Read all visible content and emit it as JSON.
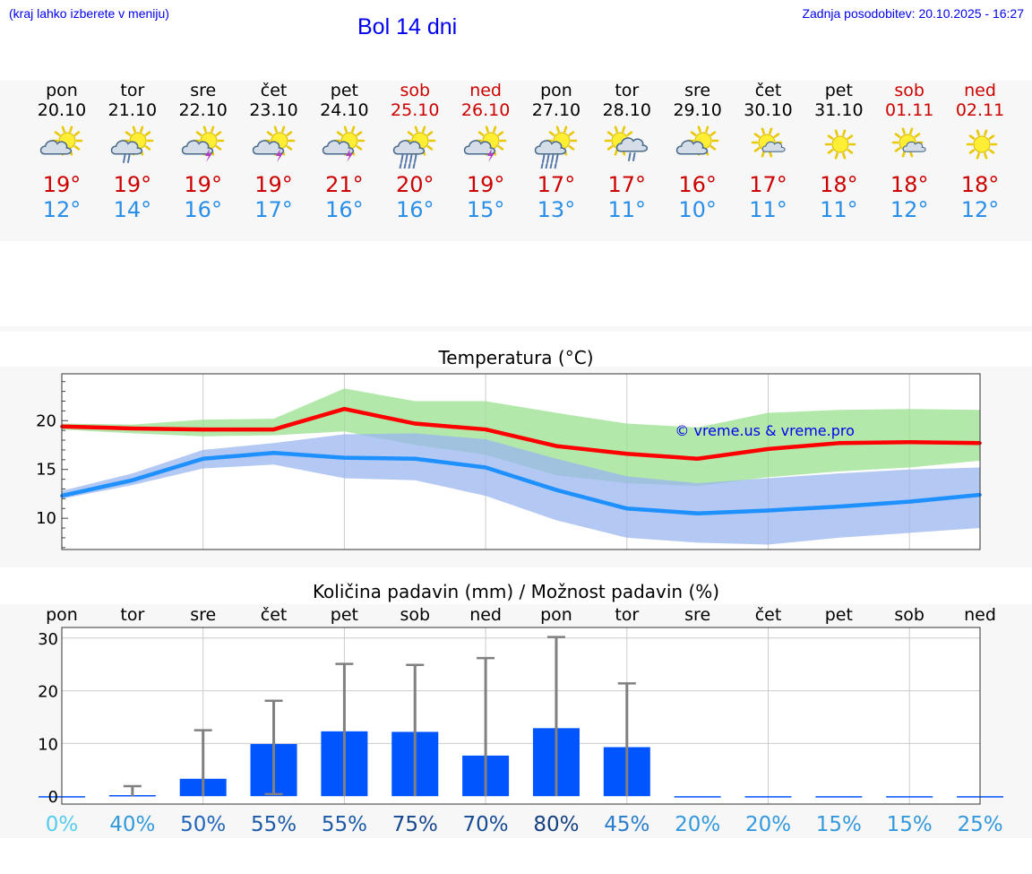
{
  "header": {
    "hint": "(kraj lahko izberete v meniju)",
    "title": "Bol 14 dni",
    "updated": "Zadnja posodobitev: 20.10.2025 - 16:27"
  },
  "colors": {
    "weekday": "#000000",
    "weekend": "#cc0000",
    "tmax": "#cc0000",
    "tmin": "#2a8fe8",
    "link": "#0000ee",
    "bar": "#0055ff"
  },
  "days": [
    {
      "name": "pon",
      "date": "20.10",
      "weekend": false,
      "icon": "sun-cloud-icon",
      "max": "19°",
      "min": "12°"
    },
    {
      "name": "tor",
      "date": "21.10",
      "weekend": false,
      "icon": "sun-cloud-rain-icon",
      "max": "19°",
      "min": "14°"
    },
    {
      "name": "sre",
      "date": "22.10",
      "weekend": false,
      "icon": "sun-cloud-thunder-icon",
      "max": "19°",
      "min": "16°"
    },
    {
      "name": "čet",
      "date": "23.10",
      "weekend": false,
      "icon": "sun-cloud-thunder-icon",
      "max": "19°",
      "min": "17°"
    },
    {
      "name": "pet",
      "date": "24.10",
      "weekend": false,
      "icon": "sun-cloud-thunder-icon",
      "max": "21°",
      "min": "16°"
    },
    {
      "name": "sob",
      "date": "25.10",
      "weekend": true,
      "icon": "sun-cloud-heavy-rain-icon",
      "max": "20°",
      "min": "16°"
    },
    {
      "name": "ned",
      "date": "26.10",
      "weekend": true,
      "icon": "sun-cloud-thunder-icon",
      "max": "19°",
      "min": "15°"
    },
    {
      "name": "pon",
      "date": "27.10",
      "weekend": false,
      "icon": "sun-cloud-heavy-rain-icon",
      "max": "17°",
      "min": "13°"
    },
    {
      "name": "tor",
      "date": "28.10",
      "weekend": false,
      "icon": "sun-big-cloud-rain-icon",
      "max": "17°",
      "min": "11°"
    },
    {
      "name": "sre",
      "date": "29.10",
      "weekend": false,
      "icon": "sun-cloud-icon",
      "max": "16°",
      "min": "10°"
    },
    {
      "name": "čet",
      "date": "30.10",
      "weekend": false,
      "icon": "sun-small-cloud-icon",
      "max": "17°",
      "min": "11°"
    },
    {
      "name": "pet",
      "date": "31.10",
      "weekend": false,
      "icon": "sun-icon",
      "max": "18°",
      "min": "11°"
    },
    {
      "name": "sob",
      "date": "01.11",
      "weekend": true,
      "icon": "sun-small-cloud-icon",
      "max": "18°",
      "min": "12°"
    },
    {
      "name": "ned",
      "date": "02.11",
      "weekend": true,
      "icon": "sun-icon",
      "max": "18°",
      "min": "12°"
    }
  ],
  "chart_data": [
    {
      "type": "line",
      "title": "Temperatura (°C)",
      "watermark": "© vreme.us & vreme.pro",
      "ylim": [
        6.8,
        24.8
      ],
      "yticks": [
        "10",
        "15",
        "20"
      ],
      "x": [
        0,
        1,
        2,
        3,
        4,
        5,
        6,
        7,
        8,
        9,
        10,
        11,
        12,
        13
      ],
      "series": [
        {
          "name": "max",
          "color": "#ff0000",
          "values": [
            19.4,
            19.2,
            19.1,
            19.1,
            21.2,
            19.7,
            19.1,
            17.4,
            16.6,
            16.1,
            17.1,
            17.7,
            17.8,
            17.7
          ]
        },
        {
          "name": "min",
          "color": "#1e90ff",
          "values": [
            12.3,
            13.9,
            16.1,
            16.7,
            16.2,
            16.1,
            15.2,
            12.9,
            11.0,
            10.5,
            10.8,
            11.2,
            11.7,
            12.4
          ]
        }
      ],
      "bands": [
        {
          "name": "max-range",
          "color": "#99e08f",
          "upper": [
            19.7,
            19.6,
            20.1,
            20.2,
            23.3,
            22.0,
            22.0,
            20.8,
            19.7,
            19.3,
            20.8,
            21.1,
            21.2,
            21.1
          ],
          "lower": [
            19.1,
            18.7,
            18.4,
            18.5,
            18.9,
            17.5,
            16.5,
            14.4,
            13.6,
            13.3,
            14.2,
            14.8,
            15.2,
            15.9
          ]
        },
        {
          "name": "min-range",
          "color": "#99b5ef",
          "upper": [
            12.8,
            14.6,
            17.0,
            17.7,
            18.6,
            18.7,
            18.1,
            16.1,
            14.3,
            13.6,
            14.1,
            14.6,
            15.0,
            15.2
          ],
          "lower": [
            12.0,
            13.4,
            15.1,
            15.5,
            14.1,
            13.9,
            12.3,
            9.8,
            8.0,
            7.5,
            7.3,
            8.0,
            8.5,
            9.0
          ]
        }
      ]
    },
    {
      "type": "bar",
      "title": "Količina padavin (mm) / Možnost padavin (%)",
      "ylim": [
        -1.5,
        32
      ],
      "yticks": [
        "0",
        "10",
        "20",
        "30"
      ],
      "categories": [
        "pon",
        "tor",
        "sre",
        "čet",
        "pet",
        "sob",
        "ned",
        "pon",
        "tor",
        "sre",
        "čet",
        "pet",
        "sob",
        "ned"
      ],
      "values": [
        0,
        0.2,
        3.3,
        9.9,
        12.3,
        12.2,
        7.7,
        12.9,
        9.3,
        0,
        0,
        0,
        0,
        0
      ],
      "error_low": [
        0,
        0,
        0,
        0.4,
        0,
        0,
        0,
        0,
        0,
        0,
        0,
        0,
        0,
        0
      ],
      "error_high": [
        0,
        1.9,
        12.5,
        18.1,
        25.1,
        24.9,
        26.2,
        30.2,
        21.4,
        0,
        0,
        0,
        0,
        0
      ],
      "probabilities": [
        {
          "label": "0%",
          "color": "#55ccee"
        },
        {
          "label": "40%",
          "color": "#3399dd"
        },
        {
          "label": "50%",
          "color": "#2266bb"
        },
        {
          "label": "55%",
          "color": "#1c5aa8"
        },
        {
          "label": "55%",
          "color": "#1c5aa8"
        },
        {
          "label": "75%",
          "color": "#17478e"
        },
        {
          "label": "70%",
          "color": "#174b94"
        },
        {
          "label": "80%",
          "color": "#143f80"
        },
        {
          "label": "45%",
          "color": "#2a7ccc"
        },
        {
          "label": "20%",
          "color": "#3399dd"
        },
        {
          "label": "20%",
          "color": "#3399dd"
        },
        {
          "label": "15%",
          "color": "#3399dd"
        },
        {
          "label": "15%",
          "color": "#3399dd"
        },
        {
          "label": "25%",
          "color": "#3399dd"
        }
      ]
    }
  ]
}
